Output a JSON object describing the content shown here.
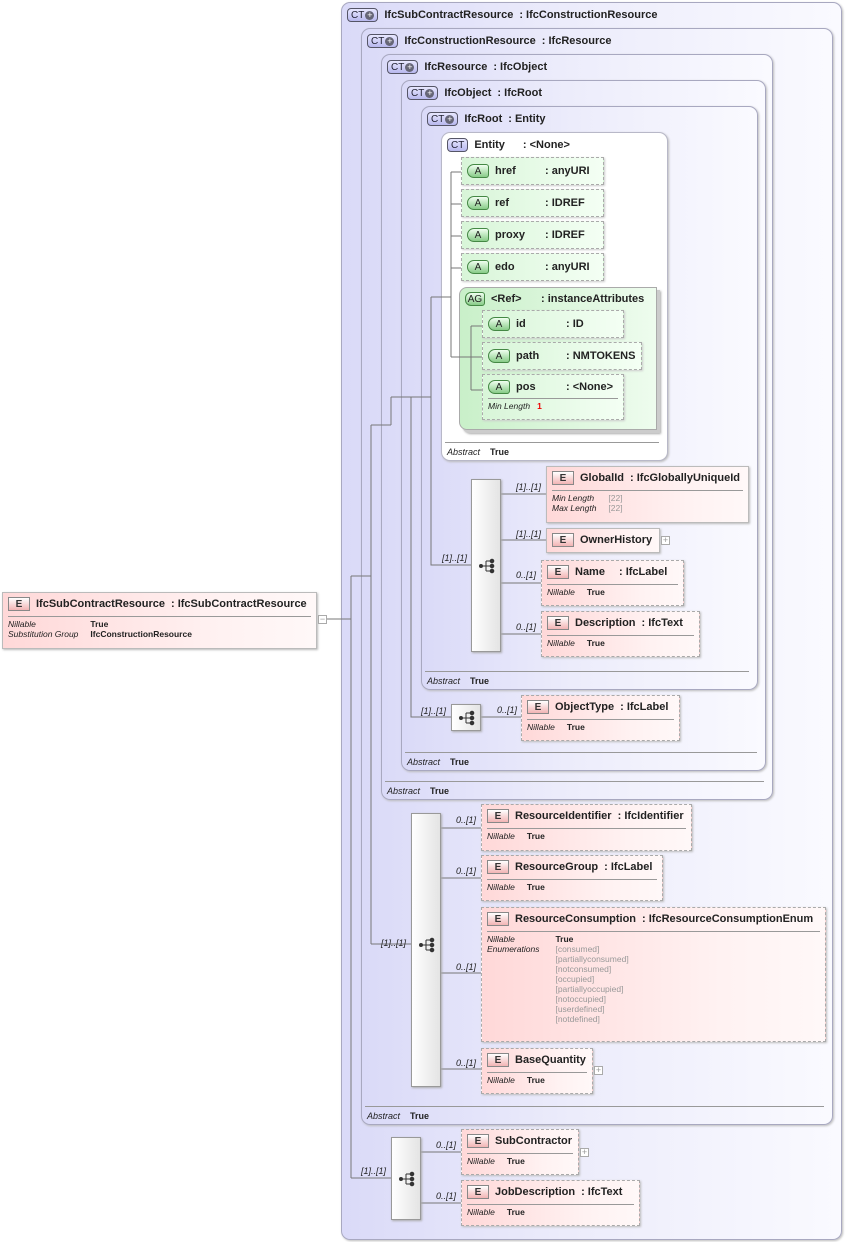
{
  "root_element": {
    "badge": "E",
    "name": "IfcSubContractResource",
    "type": ": IfcSubContractResource",
    "props": [
      {
        "k": "Nillable",
        "v": "True"
      },
      {
        "k": "Substitution Group",
        "v": "IfcConstructionResource"
      }
    ],
    "toggle": "−"
  },
  "complex_types": [
    {
      "badge": "CT",
      "name": "IfcSubContractResource",
      "base": ": IfcConstructionResource"
    },
    {
      "badge": "CT",
      "name": "IfcConstructionResource",
      "base": ": IfcResource",
      "abstract_k": "Abstract",
      "abstract_v": "True"
    },
    {
      "badge": "CT",
      "name": "IfcResource",
      "base": ": IfcObject",
      "abstract_k": "Abstract",
      "abstract_v": "True"
    },
    {
      "badge": "CT",
      "name": "IfcObject",
      "base": ": IfcRoot",
      "abstract_k": "Abstract",
      "abstract_v": "True"
    },
    {
      "badge": "CT",
      "name": "IfcRoot",
      "base": ": Entity",
      "abstract_k": "Abstract",
      "abstract_v": "True"
    },
    {
      "badge": "CT",
      "name": "Entity",
      "base": ": <None>",
      "abstract_k": "Abstract",
      "abstract_v": "True"
    }
  ],
  "attributes": [
    {
      "badge": "A",
      "name": "href",
      "type": ": anyURI"
    },
    {
      "badge": "A",
      "name": "ref",
      "type": ": IDREF"
    },
    {
      "badge": "A",
      "name": "proxy",
      "type": ": IDREF"
    },
    {
      "badge": "A",
      "name": "edo",
      "type": ": anyURI"
    }
  ],
  "attribute_group": {
    "badge": "AG",
    "name": "<Ref>",
    "type": ": instanceAttributes",
    "attributes": [
      {
        "badge": "A",
        "name": "id",
        "type": ": ID"
      },
      {
        "badge": "A",
        "name": "path",
        "type": ": NMTOKENS"
      },
      {
        "badge": "A",
        "name": "pos",
        "type": ": <None>",
        "prop_k": "Min Length",
        "prop_v": "1"
      }
    ]
  },
  "elements": {
    "globalid": {
      "name": "GlobalId",
      "type": ": IfcGloballyUniqueId",
      "card": "[1]..[1]",
      "props": [
        {
          "k": "Min Length",
          "v": "[22]"
        },
        {
          "k": "Max Length",
          "v": "[22]"
        }
      ]
    },
    "ownerhistory": {
      "name": "OwnerHistory",
      "card": "[1]..[1]",
      "toggle": "+"
    },
    "name": {
      "name": "Name",
      "type": ": IfcLabel",
      "card": "0..[1]",
      "props": [
        {
          "k": "Nillable",
          "v": "True"
        }
      ]
    },
    "description": {
      "name": "Description",
      "type": ": IfcText",
      "card": "0..[1]",
      "props": [
        {
          "k": "Nillable",
          "v": "True"
        }
      ]
    },
    "objecttype": {
      "name": "ObjectType",
      "type": ": IfcLabel",
      "card": "0..[1]",
      "props": [
        {
          "k": "Nillable",
          "v": "True"
        }
      ]
    },
    "resourceidentifier": {
      "name": "ResourceIdentifier",
      "type": ": IfcIdentifier",
      "card": "0..[1]",
      "props": [
        {
          "k": "Nillable",
          "v": "True"
        }
      ]
    },
    "resourcegroup": {
      "name": "ResourceGroup",
      "type": ": IfcLabel",
      "card": "0..[1]",
      "props": [
        {
          "k": "Nillable",
          "v": "True"
        }
      ]
    },
    "resourceconsumption": {
      "name": "ResourceConsumption",
      "type": ": IfcResourceConsumptionEnum",
      "card": "0..[1]",
      "nillable_k": "Nillable",
      "nillable_v": "True",
      "enum_k": "Enumerations",
      "enums": [
        "[consumed]",
        "[partiallyconsumed]",
        "[notconsumed]",
        "[occupied]",
        "[partiallyoccupied]",
        "[notoccupied]",
        "[userdefined]",
        "[notdefined]"
      ]
    },
    "basequantity": {
      "name": "BaseQuantity",
      "card": "0..[1]",
      "toggle": "+",
      "props": [
        {
          "k": "Nillable",
          "v": "True"
        }
      ]
    },
    "subcontractor": {
      "name": "SubContractor",
      "card": "0..[1]",
      "toggle": "+",
      "props": [
        {
          "k": "Nillable",
          "v": "True"
        }
      ]
    },
    "jobdescription": {
      "name": "JobDescription",
      "type": ": IfcText",
      "card": "0..[1]",
      "props": [
        {
          "k": "Nillable",
          "v": "True"
        }
      ]
    }
  },
  "sequence_cards": {
    "root": "[1]..[1]",
    "object": "[1]..[1]",
    "construction": "[1]..[1]",
    "sub": "[1]..[1]"
  },
  "colors": {
    "ct_bg": "#dadaf8",
    "element_bg": "#ffd8d8",
    "attribute_bg": "#d8f5d8",
    "min_length_value": "#ee0000"
  }
}
